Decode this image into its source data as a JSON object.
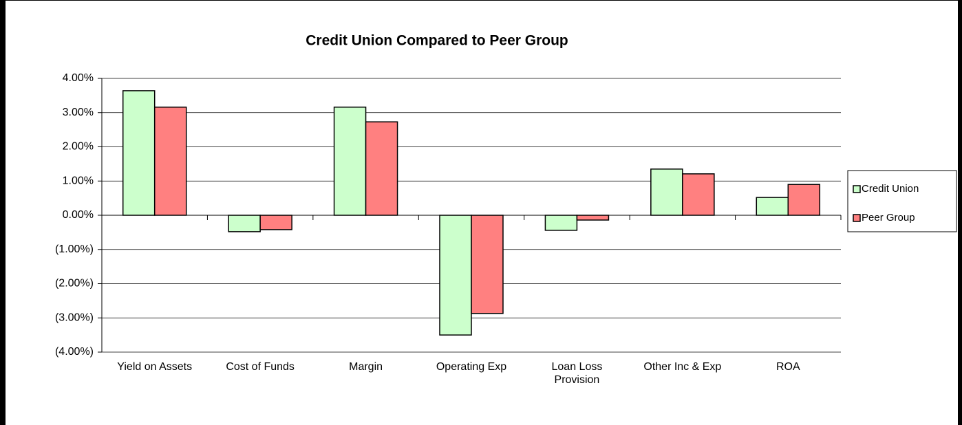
{
  "chart_data": {
    "type": "bar",
    "title": "Credit Union Compared to Peer Group",
    "categories": [
      "Yield on Assets",
      "Cost of Funds",
      "Margin",
      "Operating Exp",
      "Loan Loss Provision",
      "Other Inc & Exp",
      "ROA"
    ],
    "series": [
      {
        "name": "Credit Union",
        "color": "#ccffcc",
        "values": [
          3.64,
          -0.48,
          3.16,
          -3.5,
          -0.44,
          1.35,
          0.52
        ]
      },
      {
        "name": "Peer Group",
        "color": "#ff8080",
        "values": [
          3.16,
          -0.42,
          2.73,
          -2.87,
          -0.14,
          1.21,
          0.9
        ]
      }
    ],
    "ylim": [
      -4,
      4
    ],
    "yticks": [
      {
        "value": -4,
        "label": "(4.00%)"
      },
      {
        "value": -3,
        "label": "(3.00%)"
      },
      {
        "value": -2,
        "label": "(2.00%)"
      },
      {
        "value": -1,
        "label": "(1.00%)"
      },
      {
        "value": 0,
        "label": "0.00%"
      },
      {
        "value": 1,
        "label": "1.00%"
      },
      {
        "value": 2,
        "label": "2.00%"
      },
      {
        "value": 3,
        "label": "3.00%"
      },
      {
        "value": 4,
        "label": "4.00%"
      }
    ],
    "grid": true,
    "legend": "right"
  }
}
